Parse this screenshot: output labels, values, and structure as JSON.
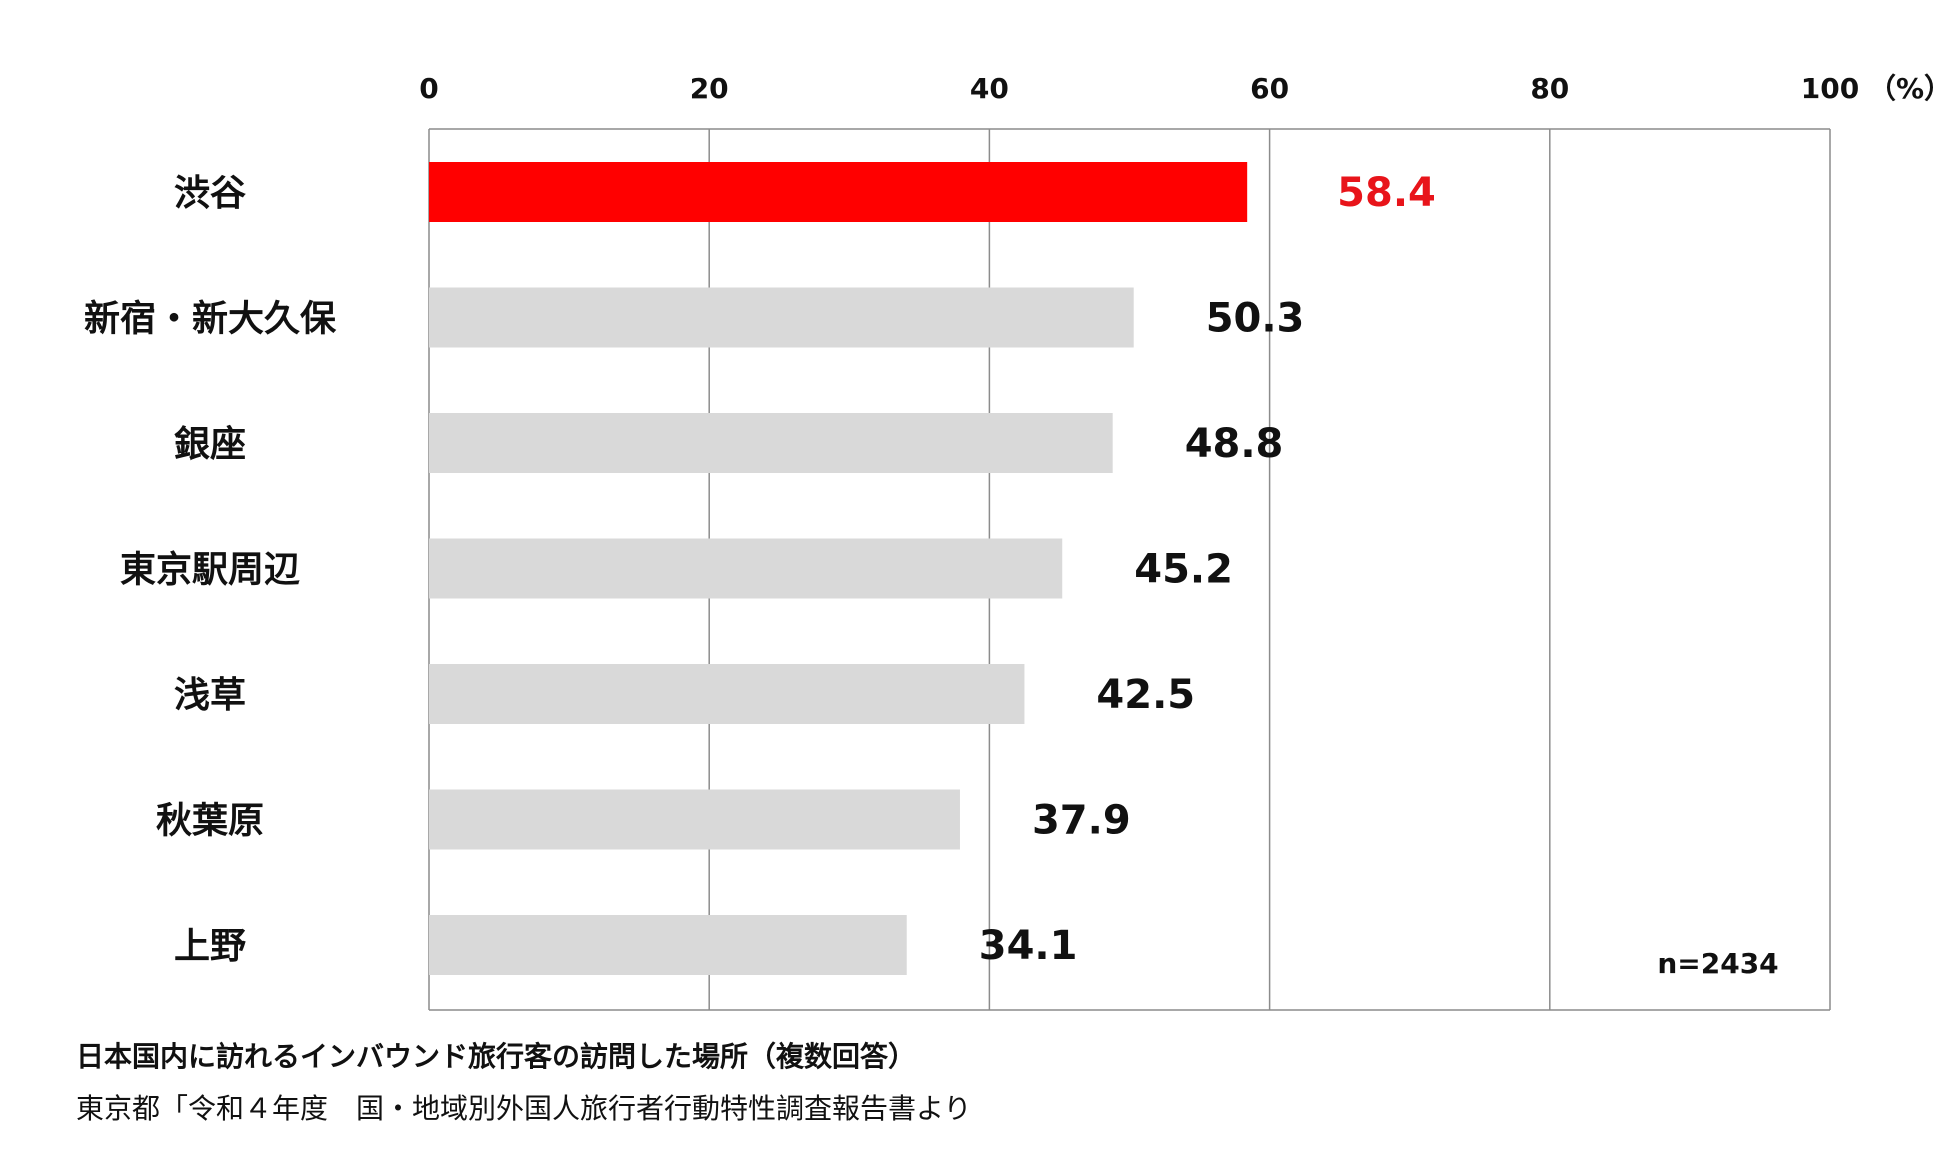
{
  "chart_data": {
    "type": "bar",
    "orientation": "horizontal",
    "categories": [
      "渋谷",
      "新宿・新大久保",
      "銀座",
      "東京駅周辺",
      "浅草",
      "秋葉原",
      "上野"
    ],
    "values": [
      58.4,
      50.3,
      48.8,
      45.2,
      42.5,
      37.9,
      34.1
    ],
    "value_labels": [
      "58.4",
      "50.3",
      "48.8",
      "45.2",
      "42.5",
      "37.9",
      "34.1"
    ],
    "highlight_index": 0,
    "x_ticks": [
      0,
      20,
      40,
      60,
      80,
      100
    ],
    "x_tick_labels": [
      "0",
      "20",
      "40",
      "60",
      "80",
      "100"
    ],
    "x_unit": "（%）",
    "xlim": [
      0,
      100
    ],
    "grid": true,
    "sample_size": "n=2434",
    "colors": {
      "highlight": "#ff0000",
      "bar": "#d9d9d9",
      "highlight_label": "#e8141a",
      "label": "#111111",
      "grid": "#8c8c8c"
    }
  },
  "caption": {
    "title": "日本国内に訪れるインバウンド旅行客の訪問した場所（複数回答）",
    "source": "東京都「令和４年度　国・地域別外国人旅行者行動特性調査報告書より"
  }
}
